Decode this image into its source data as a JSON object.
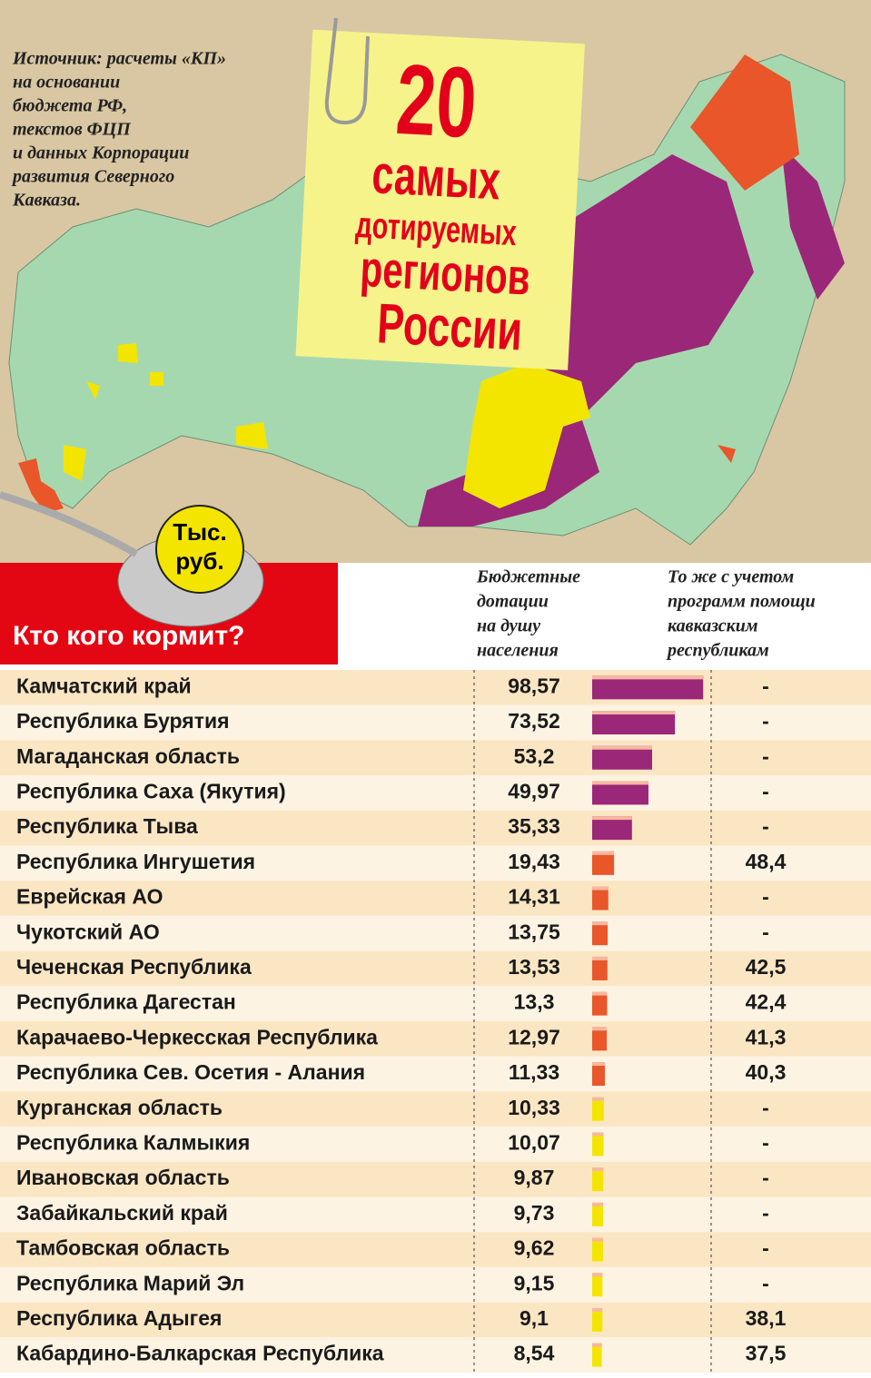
{
  "source": [
    "Источник: расчеты «КП»",
    "на основании",
    "бюджета РФ,",
    "текстов ФЦП",
    "и данных Корпорации",
    "развития Северного",
    "Кавказа."
  ],
  "headline": [
    "20",
    "самых",
    "дотируемых",
    "регионов",
    "России"
  ],
  "unit": [
    "Тыс.",
    "руб."
  ],
  "chart_data": {
    "type": "bar",
    "title": "Кто кого кормит?",
    "column_headers": [
      [
        "Бюджетные",
        "дотации",
        "на душу",
        "населения"
      ],
      [
        "То же с учетом",
        "программ помощи",
        "кавказским",
        "республикам"
      ]
    ],
    "categories": [
      "Камчатский край",
      "Республика Бурятия",
      "Магаданская область",
      "Республика Саха (Якутия)",
      "Республика Тыва",
      "Республика Ингушетия",
      "Еврейская АО",
      "Чукотский АО",
      "Чеченская Республика",
      "Республика Дагестан",
      "Карачаево-Черкесская Республика",
      "Республика Сев. Осетия - Алания",
      "Курганская область",
      "Республика Калмыкия",
      "Ивановская область",
      "Забайкальский край",
      "Тамбовская область",
      "Республика Марий Эл",
      "Республика Адыгея",
      "Кабардино-Балкарская Республика"
    ],
    "values": [
      98.57,
      73.52,
      53.2,
      49.97,
      35.33,
      19.43,
      14.31,
      13.75,
      13.53,
      13.3,
      12.97,
      11.33,
      10.33,
      10.07,
      9.87,
      9.73,
      9.62,
      9.15,
      9.1,
      8.54
    ],
    "value_labels": [
      "98,57",
      "73,52",
      "53,2",
      "49,97",
      "35,33",
      "19,43",
      "14,31",
      "13,75",
      "13,53",
      "13,3",
      "12,97",
      "11,33",
      "10,33",
      "10,07",
      "9,87",
      "9,73",
      "9,62",
      "9,15",
      "9,1",
      "8,54"
    ],
    "colors": [
      "#9b2778",
      "#9b2778",
      "#9b2778",
      "#9b2778",
      "#9b2778",
      "#e8562a",
      "#e8562a",
      "#e8562a",
      "#e8562a",
      "#e8562a",
      "#e8562a",
      "#e8562a",
      "#f3e500",
      "#f3e500",
      "#f3e500",
      "#f3e500",
      "#f3e500",
      "#f3e500",
      "#f3e500",
      "#f3e500"
    ],
    "xlim": [
      0,
      100
    ],
    "values2": [
      null,
      null,
      null,
      null,
      null,
      48.4,
      null,
      null,
      42.5,
      42.4,
      41.3,
      40.3,
      null,
      null,
      null,
      null,
      null,
      null,
      38.1,
      37.5
    ],
    "value2_labels": [
      "-",
      "-",
      "-",
      "-",
      "-",
      "48,4",
      "-",
      "-",
      "42,5",
      "42,4",
      "41,3",
      "40,3",
      "-",
      "-",
      "-",
      "-",
      "-",
      "-",
      "38,1",
      "37,5"
    ]
  }
}
